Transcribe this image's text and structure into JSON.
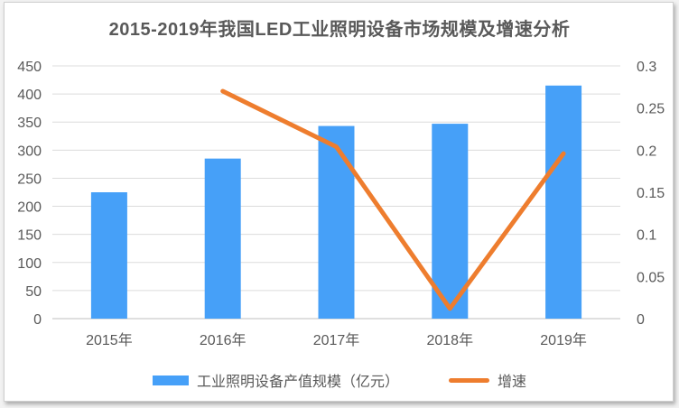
{
  "title": "2015-2019年我国LED工业照明设备市场规模及增速分析",
  "colors": {
    "bar": "#46A0F8",
    "line": "#EE7D2E",
    "grid": "#DCDCDC",
    "axis_line": "#BFBFBF",
    "text": "#595959"
  },
  "legend": {
    "items": [
      {
        "label": "工业照明设备产值规模（亿元）",
        "swatch": "bar"
      },
      {
        "label": "增速",
        "swatch": "line"
      }
    ]
  },
  "chart_data": {
    "type": "combo",
    "subtypes": [
      "bar",
      "line"
    ],
    "title": "2015-2019年我国LED工业照明设备市场规模及增速分析",
    "categories": [
      "2015年",
      "2016年",
      "2017年",
      "2018年",
      "2019年"
    ],
    "series": [
      {
        "name": "工业照明设备产值规模（亿元）",
        "type": "bar",
        "axis": "left",
        "color": "#46A0F8",
        "values": [
          225,
          285,
          343,
          347,
          415
        ]
      },
      {
        "name": "增速",
        "type": "line",
        "axis": "right",
        "color": "#EE7D2E",
        "values": [
          null,
          0.27,
          0.204,
          0.012,
          0.196
        ]
      }
    ],
    "left_axis": {
      "min": 0,
      "max": 450,
      "step": 50,
      "tick_labels": [
        "0",
        "50",
        "100",
        "150",
        "200",
        "250",
        "300",
        "350",
        "400",
        "450"
      ]
    },
    "right_axis": {
      "min": 0,
      "max": 0.3,
      "step": 0.05,
      "tick_labels": [
        "0",
        "0.05",
        "0.1",
        "0.15",
        "0.2",
        "0.25",
        "0.3"
      ]
    },
    "grid": true,
    "legend_position": "bottom"
  }
}
